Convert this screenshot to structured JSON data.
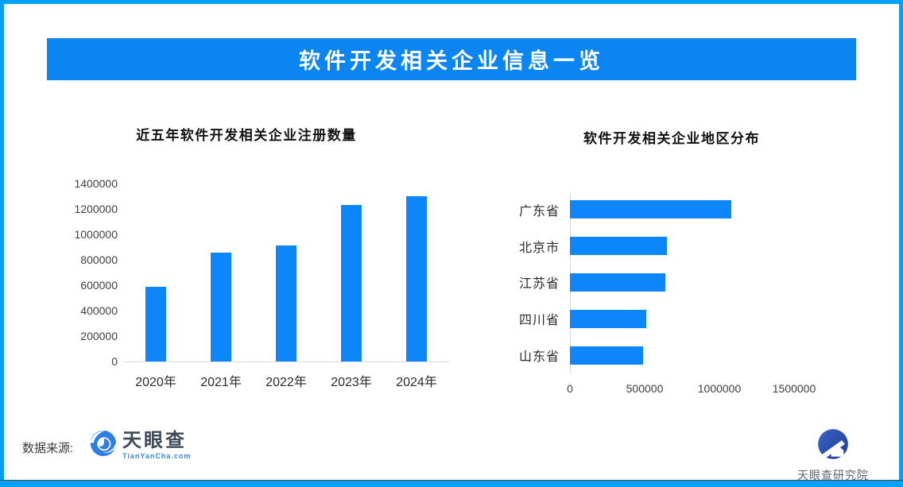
{
  "colors": {
    "page_border": "#04a0f6",
    "banner_bg": "#0b85f1",
    "banner_text": "#ffffff",
    "bar": "#0c86f8",
    "axis_line": "#d9d9d9",
    "tick_text": "#3f3f3f"
  },
  "header": {
    "title": "软件开发相关企业信息一览"
  },
  "chart_data": [
    {
      "type": "bar",
      "orientation": "vertical",
      "title": "近五年软件开发相关企业注册数量",
      "categories": [
        "2020年",
        "2021年",
        "2022年",
        "2023年",
        "2024年"
      ],
      "values": [
        590000,
        855000,
        910000,
        1230000,
        1300000
      ],
      "xlabel": "",
      "ylabel": "",
      "ylim": [
        0,
        1400000
      ],
      "ytick_step": 200000,
      "grid": false,
      "legend": "none",
      "bar_color": "#0c86f8"
    },
    {
      "type": "bar",
      "orientation": "horizontal",
      "title": "软件开发相关企业地区分布",
      "categories": [
        "广东省",
        "北京市",
        "江苏省",
        "四川省",
        "山东省"
      ],
      "values": [
        1080000,
        650000,
        640000,
        510000,
        490000
      ],
      "xlabel": "",
      "ylabel": "",
      "xlim": [
        0,
        1500000
      ],
      "xticks": [
        0,
        500000,
        1000000,
        1500000
      ],
      "grid": false,
      "legend": "none",
      "bar_color": "#0c86f8"
    }
  ],
  "footer": {
    "source_label": "数据来源:",
    "tianyancha": {
      "name": "天眼查",
      "url": "TianYanCha.com"
    },
    "institute": {
      "name": "天眼查研究院"
    }
  }
}
